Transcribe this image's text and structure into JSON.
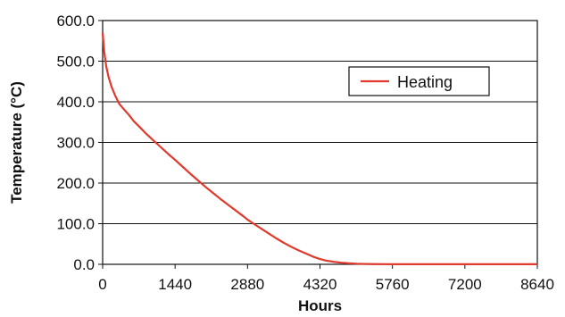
{
  "chart_data": {
    "type": "line",
    "xlabel": "Hours",
    "ylabel": "Temperature (°C)",
    "xlim": [
      0,
      8640
    ],
    "ylim": [
      0,
      600
    ],
    "x_ticks": [
      "0",
      "1440",
      "2880",
      "4320",
      "5760",
      "7200",
      "8640"
    ],
    "y_ticks": [
      "0.0",
      "100.0",
      "200.0",
      "300.0",
      "400.0",
      "500.0",
      "600.0"
    ],
    "grid": "horizontal",
    "legend_position": "top-right",
    "series": [
      {
        "name": "Heating",
        "color": "#e03a2e",
        "x": [
          0,
          30,
          70,
          120,
          180,
          250,
          330,
          420,
          520,
          620,
          720,
          860,
          1000,
          1150,
          1300,
          1440,
          1600,
          1750,
          1900,
          2050,
          2200,
          2350,
          2500,
          2650,
          2800,
          2880,
          3000,
          3150,
          3300,
          3450,
          3600,
          3750,
          3900,
          4050,
          4200,
          4320,
          4450,
          4600,
          4750,
          4900,
          5050,
          5200,
          5400,
          5600,
          5760,
          6000,
          6500,
          7000,
          7200,
          7800,
          8640
        ],
        "y": [
          570,
          525,
          488,
          460,
          436,
          415,
          395,
          382,
          368,
          352,
          340,
          322,
          306,
          289,
          272,
          257,
          239,
          222,
          206,
          190,
          175,
          160,
          146,
          132,
          118,
          110,
          100,
          88,
          76,
          64,
          53,
          43,
          34,
          26,
          18,
          13,
          9,
          6,
          4,
          2.5,
          1.5,
          1,
          0.6,
          0.4,
          0.3,
          0.3,
          0.3,
          0.3,
          0.3,
          0.3,
          0.3
        ]
      }
    ]
  }
}
